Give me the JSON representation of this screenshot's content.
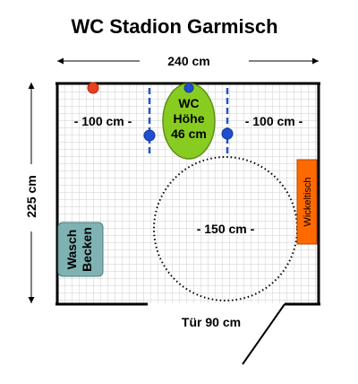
{
  "title": "WC Stadion Garmisch",
  "dimensions": {
    "width": "240 cm",
    "height": "225 cm",
    "door": "Tür  90 cm"
  },
  "toilet": {
    "line1": "WC",
    "line2": "Höhe",
    "line3": "46 cm",
    "fill_color": "#88cc22"
  },
  "side_spaces": {
    "left": "- 100 cm -",
    "right": "- 100 cm -"
  },
  "turning_circle": {
    "label": "- 150 cm -"
  },
  "sink": {
    "line1": "Wasch",
    "line2": "Becken",
    "fill_color": "#7fb3b3"
  },
  "changing_table": {
    "label": "Wickeltisch",
    "fill_color": "#ff6a00"
  },
  "colors": {
    "grid_line": "#cccccc",
    "wall": "#000000",
    "grab_bar": "#2255cc",
    "grab_bar_marker": "#1f4fd0",
    "emergency_button": "#e8401c"
  }
}
